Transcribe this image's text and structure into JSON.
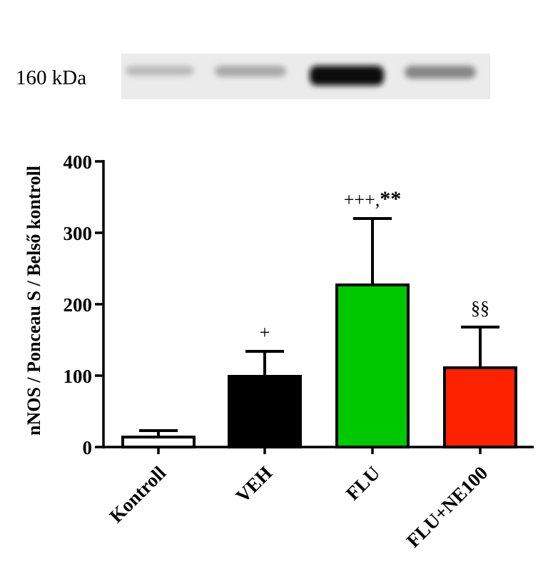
{
  "blot": {
    "label": "160 kDa",
    "lane_intensity": [
      0.22,
      0.3,
      0.98,
      0.45
    ]
  },
  "chart_data": {
    "type": "bar",
    "title": "",
    "xlabel": "",
    "ylabel": "nNOS / Ponceau S / Belső kontroll",
    "ylim": [
      0,
      400
    ],
    "yticks": [
      "0",
      "100",
      "200",
      "300",
      "400"
    ],
    "categories": [
      "Kontroll",
      "VEH",
      "FLU",
      "FLU+NE100"
    ],
    "values": [
      14,
      99,
      227,
      111
    ],
    "errors": [
      9,
      35,
      93,
      57
    ],
    "bar_colors": [
      "#ffffff",
      "#000000",
      "#00c800",
      "#ff2200"
    ],
    "annotations": [
      {
        "plain": "",
        "bold": ""
      },
      {
        "plain": "+",
        "bold": ""
      },
      {
        "plain": "+++,",
        "bold": "**"
      },
      {
        "plain": "§§",
        "bold": ""
      }
    ],
    "grid": false,
    "legend": "none"
  }
}
